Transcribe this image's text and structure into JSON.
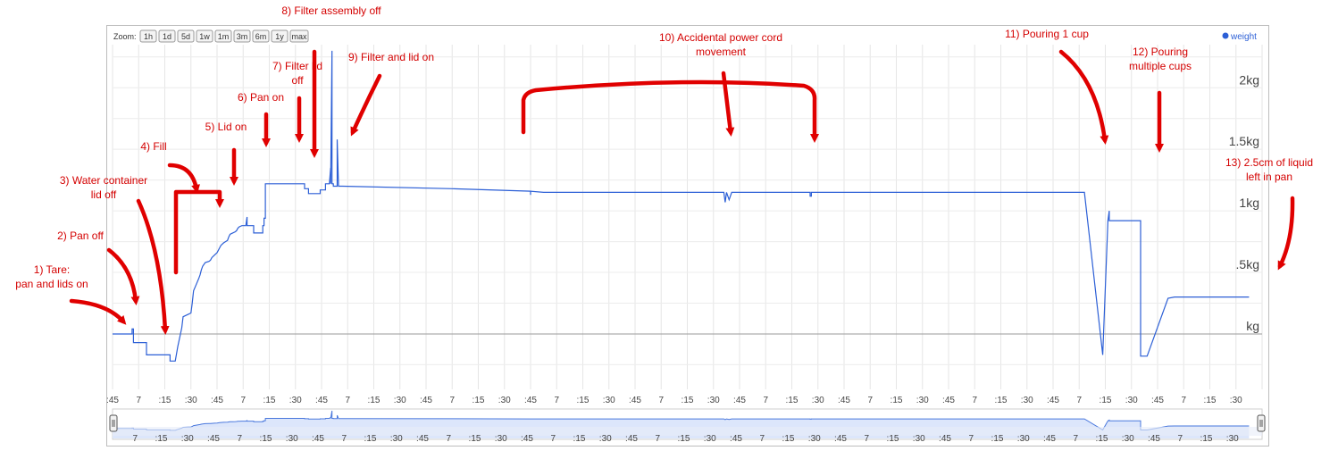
{
  "zoom": {
    "label": "Zoom:",
    "buttons": [
      "1h",
      "1d",
      "5d",
      "1w",
      "1m",
      "3m",
      "6m",
      "1y",
      "max"
    ]
  },
  "legend": {
    "label": "weight",
    "color": "#2c5fd6"
  },
  "annotations": [
    {
      "id": "1",
      "lines": [
        "1) Tare:",
        "pan and lids on"
      ]
    },
    {
      "id": "2",
      "lines": [
        "2) Pan off"
      ]
    },
    {
      "id": "3",
      "lines": [
        "3) Water container",
        "lid off"
      ]
    },
    {
      "id": "4",
      "lines": [
        "4) Fill"
      ]
    },
    {
      "id": "5",
      "lines": [
        "5) Lid on"
      ]
    },
    {
      "id": "6",
      "lines": [
        "6) Pan on"
      ]
    },
    {
      "id": "7",
      "lines": [
        "7) Filter lid",
        "off"
      ]
    },
    {
      "id": "8",
      "lines": [
        "8) Filter assembly off"
      ]
    },
    {
      "id": "9",
      "lines": [
        "9) Filter and lid on"
      ]
    },
    {
      "id": "10",
      "lines": [
        "10) Accidental power cord",
        "movement"
      ]
    },
    {
      "id": "11",
      "lines": [
        "11) Pouring 1 cup"
      ]
    },
    {
      "id": "12",
      "lines": [
        "12) Pouring",
        "multiple cups"
      ]
    },
    {
      "id": "13",
      "lines": [
        "13) 2.5cm of liquid",
        "left in pan"
      ]
    }
  ],
  "chart_data": {
    "type": "line",
    "ylabel": "",
    "xlabel": "",
    "y_ticks": [
      {
        "value": 0,
        "label": "kg"
      },
      {
        "value": 0.5,
        "label": ".5kg"
      },
      {
        "value": 1,
        "label": "1kg"
      },
      {
        "value": 1.5,
        "label": "1.5kg"
      },
      {
        "value": 2,
        "label": "2kg"
      }
    ],
    "ylim": [
      -0.45,
      2.35
    ],
    "xlim": [
      0,
      44
    ],
    "x_tick_labels": [
      ":45",
      "7",
      ":15",
      ":30",
      ":45",
      "7",
      ":15",
      ":30",
      ":45",
      "7",
      ":15",
      ":30",
      ":45",
      "7",
      ":15",
      ":30",
      ":45",
      "7",
      ":15",
      ":30",
      ":45",
      "7",
      ":15",
      ":30",
      ":45",
      "7",
      ":15",
      ":30",
      ":45",
      "7",
      ":15",
      ":30",
      ":45",
      "7",
      ":15",
      ":30",
      ":45",
      "7",
      ":15",
      ":30",
      ":45",
      "7",
      ":15",
      ":30"
    ],
    "navigator_tick_labels": [
      "7",
      ":15",
      ":30",
      ":45",
      "7",
      ":15",
      ":30",
      ":45",
      "7",
      ":15",
      ":30",
      ":45",
      "7",
      ":15",
      ":30",
      ":45",
      "7",
      ":15",
      ":30",
      ":45",
      "7",
      ":15",
      ":30",
      ":45",
      "7",
      ":15",
      ":30",
      ":45",
      "7",
      ":15",
      ":30",
      ":45",
      "7",
      ":15",
      ":30",
      ":45",
      "7",
      ":15",
      ":30",
      ":45",
      "7",
      ":15",
      ":30"
    ],
    "series": [
      {
        "name": "weight",
        "color": "#2c5fd6",
        "x": [
          0,
          0.75,
          0.75,
          0.8,
          0.8,
          1.3,
          1.3,
          2.2,
          2.2,
          2.4,
          2.5,
          2.65,
          2.7,
          2.8,
          2.9,
          3,
          3.05,
          3.1,
          3.2,
          3.3,
          3.35,
          3.4,
          3.45,
          3.55,
          3.7,
          3.75,
          3.8,
          3.9,
          4,
          4.05,
          4.1,
          4.15,
          4.25,
          4.4,
          4.45,
          4.5,
          4.6,
          4.7,
          4.75,
          4.8,
          4.85,
          4.95,
          5.05,
          5.1,
          5.15,
          5.15,
          5.2,
          5.4,
          5.4,
          5.75,
          5.75,
          5.8,
          5.8,
          5.85,
          5.85,
          7.35,
          7.35,
          7.5,
          7.5,
          7.95,
          7.95,
          8.15,
          8.15,
          8.3,
          8.35,
          8.35,
          8.4,
          8.4,
          8.45,
          8.45,
          8.6,
          8.6,
          8.65,
          8.75,
          8.75,
          8.8,
          8.8,
          13,
          16,
          16,
          16,
          16.5,
          22,
          23.4,
          23.45,
          23.5,
          23.6,
          23.7,
          23.8,
          26.7,
          26.7,
          26.75,
          26.75,
          30,
          37,
          37.2,
          37.2,
          37.9,
          37.9,
          38.1,
          38.1,
          38.15,
          38.15,
          38.4,
          38.4,
          39.35,
          39.35,
          39.6,
          39.6,
          40.4,
          40.4,
          40.65,
          40.65,
          43.5
        ],
        "y": [
          0,
          0,
          0.04,
          0.04,
          -0.07,
          -0.07,
          -0.17,
          -0.17,
          -0.22,
          -0.22,
          -0.1,
          0.05,
          0.14,
          0.15,
          0.16,
          0.17,
          0.25,
          0.35,
          0.4,
          0.45,
          0.48,
          0.52,
          0.55,
          0.58,
          0.59,
          0.6,
          0.62,
          0.64,
          0.66,
          0.68,
          0.7,
          0.72,
          0.74,
          0.76,
          0.79,
          0.81,
          0.82,
          0.83,
          0.84,
          0.86,
          0.87,
          0.88,
          0.88,
          0.88,
          0.95,
          0.88,
          0.88,
          0.88,
          0.82,
          0.82,
          0.88,
          0.88,
          0.94,
          0.94,
          1.22,
          1.22,
          1.18,
          1.18,
          1.14,
          1.14,
          1.17,
          1.17,
          1.22,
          1.22,
          1.35,
          1.22,
          2.3,
          1.22,
          1.22,
          1.2,
          1.2,
          1.58,
          1.2,
          1.2,
          1.2,
          1.2,
          1.2,
          1.18,
          1.16,
          1.13,
          1.16,
          1.15,
          1.15,
          1.15,
          1.07,
          1.15,
          1.09,
          1.15,
          1.15,
          1.15,
          1.12,
          1.12,
          1.15,
          1.15,
          1.15,
          1.15,
          1.15,
          -0.17,
          -0.17,
          0.92,
          0.92,
          1.0,
          0.92,
          0.92,
          0.92,
          0.92,
          -0.18,
          -0.18,
          -0.18,
          0.29,
          0.29,
          0.3,
          0.3,
          0.3
        ]
      }
    ]
  }
}
